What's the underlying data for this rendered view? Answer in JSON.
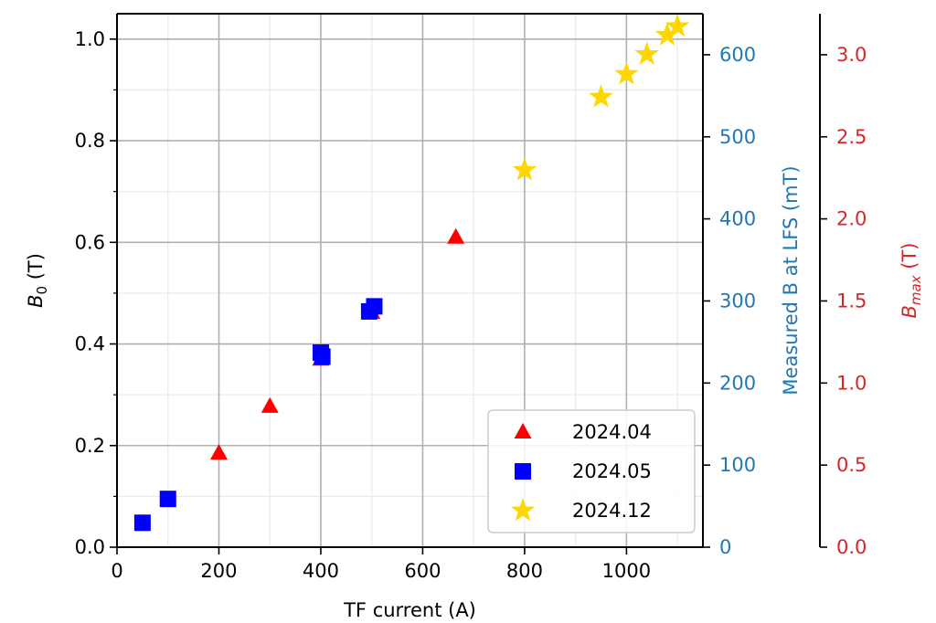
{
  "chart_data": {
    "type": "scatter",
    "xlabel": "TF current (A)",
    "xlim": [
      0,
      1150
    ],
    "x_ticks": [
      0,
      200,
      400,
      600,
      800,
      1000
    ],
    "x_minor_ticks": [
      100,
      300,
      500,
      700,
      900,
      1100
    ],
    "ylabel_left": {
      "base": "B",
      "sub": "0",
      "unit": " (T)"
    },
    "ylim_left": [
      0,
      1.05
    ],
    "y_ticks_left": [
      0.0,
      0.2,
      0.4,
      0.6,
      0.8,
      1.0
    ],
    "y_minor_ticks_left": [
      0.1,
      0.3,
      0.5,
      0.7,
      0.9
    ],
    "ylabel_right1": "Measured B at LFS (mT)",
    "ylim_right1": [
      0,
      650
    ],
    "y_ticks_right1": [
      0,
      100,
      200,
      300,
      400,
      500,
      600
    ],
    "ylabel_right2": {
      "base": "B",
      "sub": "max",
      "unit": " (T)"
    },
    "ylim_right2": [
      0,
      3.25
    ],
    "y_ticks_right2": [
      0.0,
      0.5,
      1.0,
      1.5,
      2.0,
      2.5,
      3.0
    ],
    "grid": true,
    "legend_position": "bottom-right",
    "series": [
      {
        "name": "2024.04",
        "marker": "triangle",
        "color": "#ff0000",
        "points": [
          [
            200,
            0.185
          ],
          [
            300,
            0.277
          ],
          [
            400,
            0.37
          ],
          [
            500,
            0.462
          ],
          [
            665,
            0.61
          ]
        ]
      },
      {
        "name": "2024.05",
        "marker": "square",
        "color": "#0000ff",
        "points": [
          [
            50,
            0.048
          ],
          [
            100,
            0.095
          ],
          [
            400,
            0.383
          ],
          [
            403,
            0.375
          ],
          [
            495,
            0.464
          ],
          [
            505,
            0.474
          ]
        ]
      },
      {
        "name": "2024.12",
        "marker": "star",
        "color": "#ffd700",
        "points": [
          [
            800,
            0.742
          ],
          [
            950,
            0.886
          ],
          [
            1000,
            0.931
          ],
          [
            1040,
            0.97
          ],
          [
            1080,
            1.008
          ],
          [
            1100,
            1.025
          ]
        ]
      }
    ]
  },
  "colors": {
    "right1_axis": "#1f77b4",
    "right2_axis": "#d62728"
  }
}
